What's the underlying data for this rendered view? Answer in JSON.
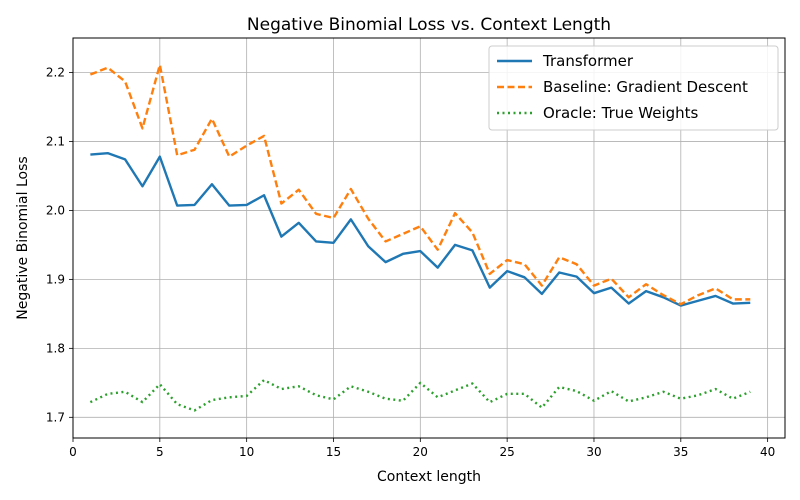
{
  "chart_data": {
    "type": "line",
    "title": "Negative Binomial Loss vs. Context Length",
    "xlabel": "Context length",
    "ylabel": "Negative Binomial Loss",
    "xlim": [
      0,
      41
    ],
    "ylim": [
      1.67,
      2.25
    ],
    "xticks": [
      0,
      5,
      10,
      15,
      20,
      25,
      30,
      35,
      40
    ],
    "yticks": [
      1.7,
      1.8,
      1.9,
      2.0,
      2.1,
      2.2
    ],
    "xtick_labels": [
      "0",
      "5",
      "10",
      "15",
      "20",
      "25",
      "30",
      "35",
      "40"
    ],
    "ytick_labels": [
      "1.7",
      "1.8",
      "1.9",
      "2.0",
      "2.1",
      "2.2"
    ],
    "grid": true,
    "legend_position": "top-right",
    "x": [
      1,
      2,
      3,
      4,
      5,
      6,
      7,
      8,
      9,
      10,
      11,
      12,
      13,
      14,
      15,
      16,
      17,
      18,
      19,
      20,
      21,
      22,
      23,
      24,
      25,
      26,
      27,
      28,
      29,
      30,
      31,
      32,
      33,
      34,
      35,
      36,
      37,
      38,
      39
    ],
    "series": [
      {
        "name": "Transformer",
        "color": "#1f77b4",
        "style": "solid",
        "values": [
          2.081,
          2.083,
          2.074,
          2.035,
          2.078,
          2.007,
          2.008,
          2.038,
          2.007,
          2.008,
          2.022,
          1.962,
          1.982,
          1.955,
          1.953,
          1.987,
          1.948,
          1.925,
          1.937,
          1.941,
          1.917,
          1.95,
          1.942,
          1.888,
          1.912,
          1.903,
          1.879,
          1.91,
          1.904,
          1.88,
          1.888,
          1.865,
          1.883,
          1.874,
          1.862,
          1.869,
          1.876,
          1.865,
          1.866
        ]
      },
      {
        "name": "Baseline: Gradient Descent",
        "color": "#ff7f0e",
        "style": "dashed",
        "values": [
          2.197,
          2.207,
          2.187,
          2.119,
          2.211,
          2.08,
          2.088,
          2.133,
          2.078,
          2.094,
          2.108,
          2.01,
          2.03,
          1.995,
          1.989,
          2.031,
          1.988,
          1.955,
          1.966,
          1.977,
          1.943,
          1.996,
          1.968,
          1.908,
          1.928,
          1.922,
          1.891,
          1.932,
          1.922,
          1.891,
          1.901,
          1.874,
          1.893,
          1.877,
          1.864,
          1.877,
          1.887,
          1.871,
          1.871
        ]
      },
      {
        "name": "Oracle: True Weights",
        "color": "#2ca02c",
        "style": "dotted",
        "values": [
          1.722,
          1.734,
          1.737,
          1.722,
          1.748,
          1.719,
          1.71,
          1.725,
          1.729,
          1.731,
          1.754,
          1.741,
          1.745,
          1.732,
          1.726,
          1.745,
          1.737,
          1.727,
          1.724,
          1.75,
          1.729,
          1.739,
          1.749,
          1.722,
          1.734,
          1.734,
          1.714,
          1.744,
          1.738,
          1.724,
          1.738,
          1.723,
          1.729,
          1.737,
          1.727,
          1.732,
          1.741,
          1.727,
          1.737
        ]
      }
    ]
  }
}
